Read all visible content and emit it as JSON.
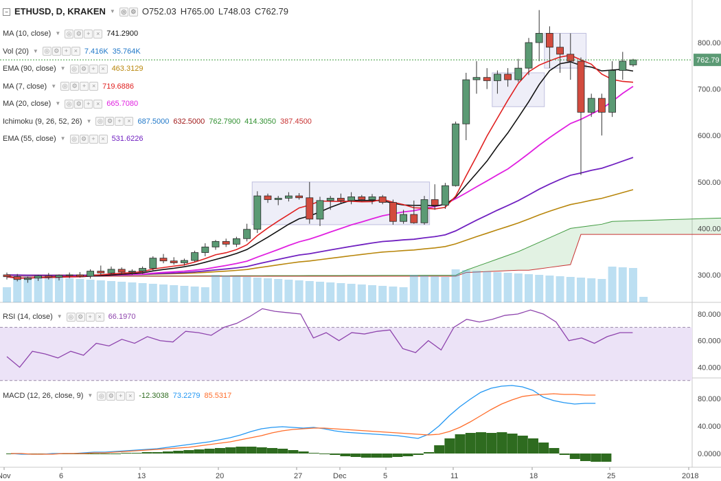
{
  "header": {
    "symbol": "ETHUSD, D, KRAKEN",
    "open": "O752.03",
    "high": "H765.00",
    "low": "L748.03",
    "close": "C762.79"
  },
  "indicators": [
    {
      "name": "MA (10, close)",
      "values": [
        "741.2900"
      ],
      "colors": [
        "#111111"
      ]
    },
    {
      "name": "Vol (20)",
      "values": [
        "7.416K",
        "35.764K"
      ],
      "colors": [
        "#1f77c8",
        "#1f77c8"
      ]
    },
    {
      "name": "EMA (90, close)",
      "values": [
        "463.3129"
      ],
      "colors": [
        "#b8860b"
      ]
    },
    {
      "name": "MA (7, close)",
      "values": [
        "719.6886"
      ],
      "colors": [
        "#e02020"
      ]
    },
    {
      "name": "MA (20, close)",
      "values": [
        "665.7080"
      ],
      "colors": [
        "#e020e0"
      ]
    },
    {
      "name": "Ichimoku (9, 26, 52, 26)",
      "values": [
        "687.5000",
        "632.5000",
        "762.7900",
        "414.3050",
        "387.4500"
      ],
      "colors": [
        "#1f77c8",
        "#a01818",
        "#2f8f2f",
        "#2f8f2f",
        "#c83232"
      ]
    },
    {
      "name": "EMA (55, close)",
      "values": [
        "531.6226"
      ],
      "colors": [
        "#7020c0"
      ]
    }
  ],
  "rsi": {
    "name": "RSI (14, close)",
    "value": "66.1970"
  },
  "macd": {
    "name": "MACD (12, 26, close, 9)",
    "values": [
      "-12.3038",
      "73.2279",
      "85.5317"
    ]
  },
  "price_axis": {
    "ticks": [
      "800.00",
      "700.00",
      "600.00",
      "500.00",
      "400.00",
      "300.00"
    ],
    "last_price": "762.79"
  },
  "rsi_axis": {
    "ticks": [
      "80.0000",
      "60.0000",
      "40.0000"
    ]
  },
  "macd_axis": {
    "ticks": [
      "80.0000",
      "40.0000",
      "0.0000"
    ]
  },
  "time_axis": [
    "Nov",
    "6",
    "13",
    "20",
    "27",
    "Dec",
    "5",
    "11",
    "18",
    "25",
    "2018"
  ],
  "colors": {
    "up": "#5b9a74",
    "down": "#d24b3e",
    "rsi": "#8e44ad",
    "macd_line": "#2196f3",
    "signal": "#ff6d2a",
    "hist": "#2e6b1f"
  },
  "chart_data": {
    "type": "candlestick",
    "symbol": "ETHUSD",
    "candles": [
      {
        "o": 300,
        "h": 305,
        "l": 290,
        "c": 296
      },
      {
        "o": 296,
        "h": 302,
        "l": 286,
        "c": 290
      },
      {
        "o": 290,
        "h": 296,
        "l": 283,
        "c": 293
      },
      {
        "o": 293,
        "h": 300,
        "l": 287,
        "c": 298
      },
      {
        "o": 298,
        "h": 304,
        "l": 290,
        "c": 295
      },
      {
        "o": 295,
        "h": 301,
        "l": 288,
        "c": 299
      },
      {
        "o": 299,
        "h": 305,
        "l": 293,
        "c": 300
      },
      {
        "o": 300,
        "h": 306,
        "l": 294,
        "c": 297
      },
      {
        "o": 297,
        "h": 312,
        "l": 292,
        "c": 308
      },
      {
        "o": 308,
        "h": 320,
        "l": 300,
        "c": 304
      },
      {
        "o": 304,
        "h": 318,
        "l": 298,
        "c": 312
      },
      {
        "o": 312,
        "h": 316,
        "l": 302,
        "c": 306
      },
      {
        "o": 306,
        "h": 312,
        "l": 300,
        "c": 308
      },
      {
        "o": 308,
        "h": 318,
        "l": 302,
        "c": 314
      },
      {
        "o": 314,
        "h": 340,
        "l": 310,
        "c": 336
      },
      {
        "o": 336,
        "h": 345,
        "l": 325,
        "c": 330
      },
      {
        "o": 330,
        "h": 338,
        "l": 322,
        "c": 326
      },
      {
        "o": 326,
        "h": 335,
        "l": 320,
        "c": 331
      },
      {
        "o": 331,
        "h": 352,
        "l": 328,
        "c": 348
      },
      {
        "o": 348,
        "h": 368,
        "l": 340,
        "c": 360
      },
      {
        "o": 360,
        "h": 375,
        "l": 354,
        "c": 372
      },
      {
        "o": 372,
        "h": 378,
        "l": 360,
        "c": 366
      },
      {
        "o": 366,
        "h": 382,
        "l": 360,
        "c": 378
      },
      {
        "o": 378,
        "h": 410,
        "l": 372,
        "c": 398
      },
      {
        "o": 398,
        "h": 480,
        "l": 390,
        "c": 470
      },
      {
        "o": 470,
        "h": 475,
        "l": 455,
        "c": 462
      },
      {
        "o": 462,
        "h": 470,
        "l": 450,
        "c": 465
      },
      {
        "o": 465,
        "h": 478,
        "l": 458,
        "c": 470
      },
      {
        "o": 470,
        "h": 476,
        "l": 462,
        "c": 466
      },
      {
        "o": 466,
        "h": 500,
        "l": 410,
        "c": 420
      },
      {
        "o": 420,
        "h": 468,
        "l": 405,
        "c": 460
      },
      {
        "o": 460,
        "h": 470,
        "l": 440,
        "c": 465
      },
      {
        "o": 465,
        "h": 475,
        "l": 455,
        "c": 460
      },
      {
        "o": 460,
        "h": 478,
        "l": 452,
        "c": 468
      },
      {
        "o": 468,
        "h": 472,
        "l": 458,
        "c": 462
      },
      {
        "o": 462,
        "h": 474,
        "l": 452,
        "c": 468
      },
      {
        "o": 468,
        "h": 472,
        "l": 452,
        "c": 456
      },
      {
        "o": 456,
        "h": 462,
        "l": 408,
        "c": 415
      },
      {
        "o": 415,
        "h": 440,
        "l": 410,
        "c": 430
      },
      {
        "o": 430,
        "h": 460,
        "l": 410,
        "c": 412
      },
      {
        "o": 412,
        "h": 470,
        "l": 408,
        "c": 462
      },
      {
        "o": 462,
        "h": 495,
        "l": 440,
        "c": 450
      },
      {
        "o": 450,
        "h": 498,
        "l": 442,
        "c": 492
      },
      {
        "o": 492,
        "h": 630,
        "l": 490,
        "c": 625
      },
      {
        "o": 625,
        "h": 735,
        "l": 590,
        "c": 720
      },
      {
        "o": 720,
        "h": 760,
        "l": 690,
        "c": 725
      },
      {
        "o": 725,
        "h": 745,
        "l": 700,
        "c": 718
      },
      {
        "o": 718,
        "h": 740,
        "l": 690,
        "c": 732
      },
      {
        "o": 732,
        "h": 745,
        "l": 705,
        "c": 720
      },
      {
        "o": 720,
        "h": 765,
        "l": 715,
        "c": 745
      },
      {
        "o": 745,
        "h": 810,
        "l": 730,
        "c": 800
      },
      {
        "o": 800,
        "h": 870,
        "l": 760,
        "c": 820
      },
      {
        "o": 820,
        "h": 835,
        "l": 745,
        "c": 790
      },
      {
        "o": 790,
        "h": 820,
        "l": 735,
        "c": 775
      },
      {
        "o": 775,
        "h": 820,
        "l": 720,
        "c": 760
      },
      {
        "o": 760,
        "h": 768,
        "l": 515,
        "c": 650
      },
      {
        "o": 650,
        "h": 690,
        "l": 640,
        "c": 680
      },
      {
        "o": 680,
        "h": 690,
        "l": 600,
        "c": 650
      },
      {
        "o": 650,
        "h": 760,
        "l": 640,
        "c": 740
      },
      {
        "o": 740,
        "h": 780,
        "l": 720,
        "c": 760
      },
      {
        "o": 752.03,
        "h": 765.0,
        "l": 748.03,
        "c": 762.79
      }
    ],
    "ylim": [
      250,
      880
    ]
  }
}
